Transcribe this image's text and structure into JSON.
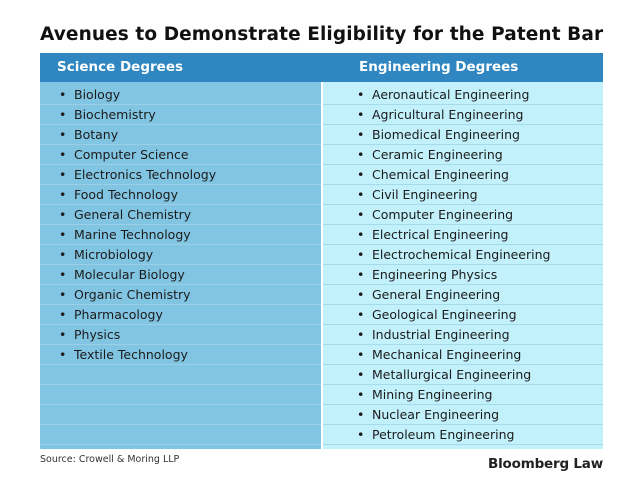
{
  "title": "Avenues to Demonstrate Eligibility for the Patent Bar",
  "table": {
    "headers": {
      "science": "Science Degrees",
      "engineering": "Engineering Degrees"
    },
    "science": [
      "Biology",
      "Biochemistry",
      "Botany",
      "Computer Science",
      "Electronics Technology",
      "Food Technology",
      "General Chemistry",
      "Marine Technology",
      "Microbiology",
      "Molecular Biology",
      "Organic Chemistry",
      "Pharmacology",
      "Physics",
      "Textile Technology"
    ],
    "engineering": [
      "Aeronautical Engineering",
      "Agricultural Engineering",
      "Biomedical Engineering",
      "Ceramic Engineering",
      "Chemical Engineering",
      "Civil Engineering",
      "Computer Engineering",
      "Electrical Engineering",
      "Electrochemical Engineering",
      "Engineering Physics",
      "General Engineering",
      "Geological Engineering",
      "Industrial Engineering",
      "Mechanical Engineering",
      "Metallurgical Engineering",
      "Mining Engineering",
      "Nuclear Engineering",
      "Petroleum Engineering"
    ],
    "colors": {
      "header": "#2f86c0",
      "science_column": "#82c5e3",
      "engineering_column": "#c2f1fb"
    }
  },
  "footer": {
    "source": "Source: Crowell & Moring LLP",
    "logo": "Bloomberg Law"
  }
}
